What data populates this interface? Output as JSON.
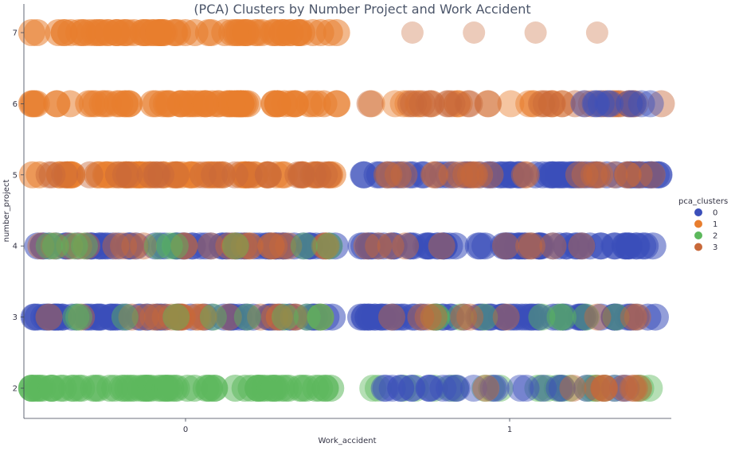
{
  "chart_data": {
    "type": "scatter",
    "title": "(PCA) Clusters by Number Project and Work Accident",
    "xlabel": "Work_accident",
    "ylabel": "number_project",
    "x_ticks": [
      "0",
      "1"
    ],
    "y_ticks": [
      "2",
      "3",
      "4",
      "5",
      "6",
      "7"
    ],
    "xlim": [
      -0.5,
      1.5
    ],
    "ylim": [
      1.5,
      7.5
    ],
    "legend": {
      "title": "pca_clusters",
      "placement": "right",
      "entries": [
        {
          "label": "0",
          "color": "#3b4fba"
        },
        {
          "label": "1",
          "color": "#e87e2e"
        },
        {
          "label": "2",
          "color": "#5cb85c"
        },
        {
          "label": "3",
          "color": "#c8693a"
        }
      ]
    },
    "series": [
      {
        "cluster": 1,
        "work_accident": 0,
        "number_project": 7,
        "x_range": [
          -0.48,
          0.47
        ],
        "density": "dense"
      },
      {
        "cluster": 1,
        "work_accident": 0,
        "number_project": 6,
        "x_range": [
          -0.48,
          0.47
        ],
        "density": "dense"
      },
      {
        "cluster": 1,
        "work_accident": 0,
        "number_project": 5,
        "x_range": [
          -0.48,
          0.47
        ],
        "density": "dense"
      },
      {
        "cluster": 3,
        "work_accident": 0,
        "number_project": 5,
        "x_range": [
          -0.45,
          0.45
        ],
        "density": "medium"
      },
      {
        "cluster": 0,
        "work_accident": 0,
        "number_project": 4,
        "x_range": [
          -0.48,
          0.47
        ],
        "density": "dense"
      },
      {
        "cluster": 3,
        "work_accident": 0,
        "number_project": 4,
        "x_range": [
          -0.45,
          0.45
        ],
        "density": "medium"
      },
      {
        "cluster": 2,
        "work_accident": 0,
        "number_project": 4,
        "x_range": [
          -0.45,
          0.45
        ],
        "density": "sparse"
      },
      {
        "cluster": 0,
        "work_accident": 0,
        "number_project": 3,
        "x_range": [
          -0.48,
          0.47
        ],
        "density": "dense"
      },
      {
        "cluster": 3,
        "work_accident": 0,
        "number_project": 3,
        "x_range": [
          -0.45,
          0.45
        ],
        "density": "medium"
      },
      {
        "cluster": 2,
        "work_accident": 0,
        "number_project": 3,
        "x_range": [
          -0.45,
          0.45
        ],
        "density": "sparse"
      },
      {
        "cluster": 2,
        "work_accident": 0,
        "number_project": 2,
        "x_range": [
          -0.48,
          0.47
        ],
        "density": "dense"
      },
      {
        "cluster": 3,
        "work_accident": 1,
        "number_project": 7,
        "x_range": [
          0.7,
          1.27
        ],
        "density": "few"
      },
      {
        "cluster": 1,
        "work_accident": 1,
        "number_project": 6,
        "x_range": [
          0.55,
          1.47
        ],
        "density": "medium"
      },
      {
        "cluster": 3,
        "work_accident": 1,
        "number_project": 6,
        "x_range": [
          0.55,
          1.47
        ],
        "density": "medium"
      },
      {
        "cluster": 0,
        "work_accident": 1,
        "number_project": 6,
        "x_range": [
          1.2,
          1.45
        ],
        "density": "sparse"
      },
      {
        "cluster": 0,
        "work_accident": 1,
        "number_project": 5,
        "x_range": [
          0.54,
          1.47
        ],
        "density": "dense"
      },
      {
        "cluster": 3,
        "work_accident": 1,
        "number_project": 5,
        "x_range": [
          0.55,
          1.47
        ],
        "density": "medium"
      },
      {
        "cluster": 0,
        "work_accident": 1,
        "number_project": 4,
        "x_range": [
          0.54,
          1.47
        ],
        "density": "dense"
      },
      {
        "cluster": 3,
        "work_accident": 1,
        "number_project": 4,
        "x_range": [
          0.55,
          1.3
        ],
        "density": "sparse"
      },
      {
        "cluster": 0,
        "work_accident": 1,
        "number_project": 3,
        "x_range": [
          0.54,
          1.47
        ],
        "density": "dense"
      },
      {
        "cluster": 2,
        "work_accident": 1,
        "number_project": 3,
        "x_range": [
          0.6,
          1.45
        ],
        "density": "sparse"
      },
      {
        "cluster": 3,
        "work_accident": 1,
        "number_project": 3,
        "x_range": [
          0.6,
          1.45
        ],
        "density": "sparse"
      },
      {
        "cluster": 2,
        "work_accident": 1,
        "number_project": 2,
        "x_range": [
          0.56,
          1.47
        ],
        "density": "medium"
      },
      {
        "cluster": 0,
        "work_accident": 1,
        "number_project": 2,
        "x_range": [
          0.6,
          1.45
        ],
        "density": "medium"
      },
      {
        "cluster": 3,
        "work_accident": 1,
        "number_project": 2,
        "x_range": [
          0.9,
          1.4
        ],
        "density": "sparse"
      }
    ]
  }
}
